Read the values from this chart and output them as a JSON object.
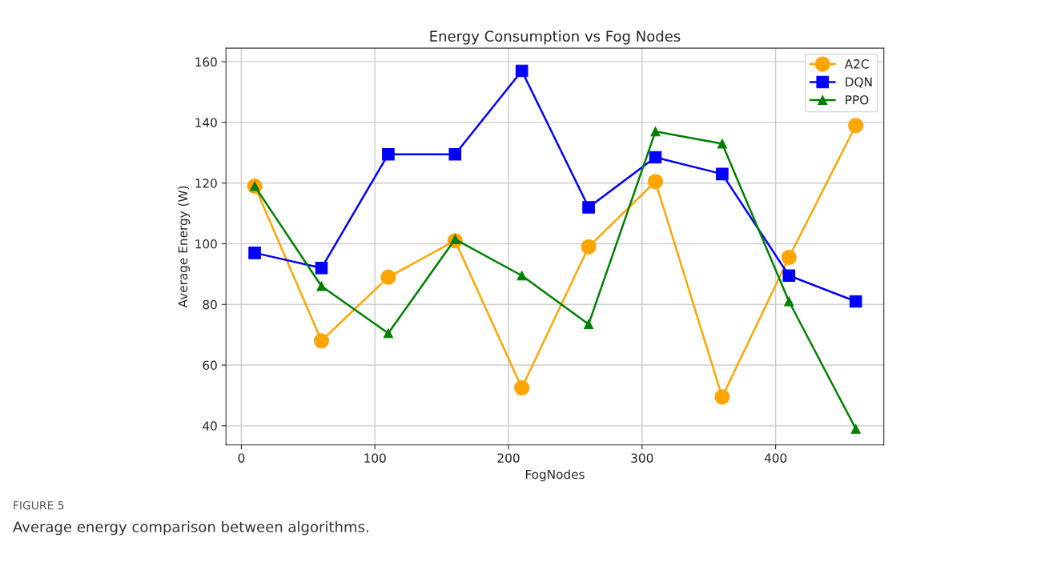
{
  "chart_data": {
    "type": "line",
    "title": "Energy Consumption vs Fog Nodes",
    "xlabel": "FogNodes",
    "ylabel": "Average Energy (W)",
    "x": [
      10,
      60,
      110,
      160,
      210,
      260,
      310,
      360,
      410,
      460
    ],
    "series": [
      {
        "name": "A2C",
        "color": "#ffa500",
        "marker": "circle",
        "values": [
          119,
          68,
          89,
          101,
          52.5,
          99,
          120.5,
          49.5,
          95.5,
          139
        ]
      },
      {
        "name": "DQN",
        "color": "#0000ff",
        "marker": "square",
        "values": [
          97,
          92,
          129.5,
          129.5,
          157,
          112,
          128.5,
          123,
          89.5,
          81
        ]
      },
      {
        "name": "PPO",
        "color": "#008000",
        "marker": "triangle",
        "values": [
          119,
          86,
          70.5,
          101.5,
          89.5,
          73.5,
          137,
          133,
          81,
          39
        ]
      }
    ],
    "xlim": [
      -11.5,
      481
    ],
    "ylim": [
      33.7,
      164.5
    ],
    "xticks": [
      0,
      100,
      200,
      300,
      400
    ],
    "yticks": [
      40,
      60,
      80,
      100,
      120,
      140,
      160
    ],
    "grid": true,
    "legend": "top right",
    "line_style": "solid",
    "annotations": [
      "FIGURE 5",
      "Average energy comparison between algorithms."
    ]
  }
}
